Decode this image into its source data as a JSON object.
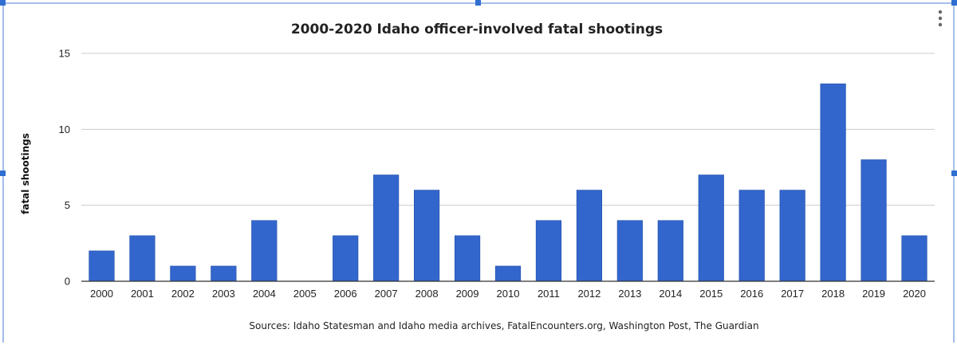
{
  "colors": {
    "bar": "#3366cc",
    "gridline": "#cccccc",
    "axis": "#333333",
    "selection": "#2f6fd1"
  },
  "menu_icon": "vertical-dots-icon",
  "chart_data": {
    "type": "bar",
    "title": "2000-2020 Idaho officer-involved fatal shootings",
    "xlabel": "",
    "ylabel": "fatal shootings",
    "footnote": "Sources: Idaho Statesman and Idaho media archives, FatalEncounters.org,  Washington Post, The  Guardian",
    "categories": [
      "2000",
      "2001",
      "2002",
      "2003",
      "2004",
      "2005",
      "2006",
      "2007",
      "2008",
      "2009",
      "2010",
      "2011",
      "2012",
      "2013",
      "2014",
      "2015",
      "2016",
      "2017",
      "2018",
      "2019",
      "2020"
    ],
    "values": [
      2,
      3,
      1,
      1,
      4,
      0,
      3,
      7,
      6,
      3,
      1,
      4,
      6,
      4,
      4,
      7,
      6,
      6,
      13,
      8,
      3
    ],
    "ylim": [
      0,
      15
    ],
    "yticks": [
      0,
      5,
      10,
      15
    ],
    "grid": true,
    "legend": "none"
  }
}
